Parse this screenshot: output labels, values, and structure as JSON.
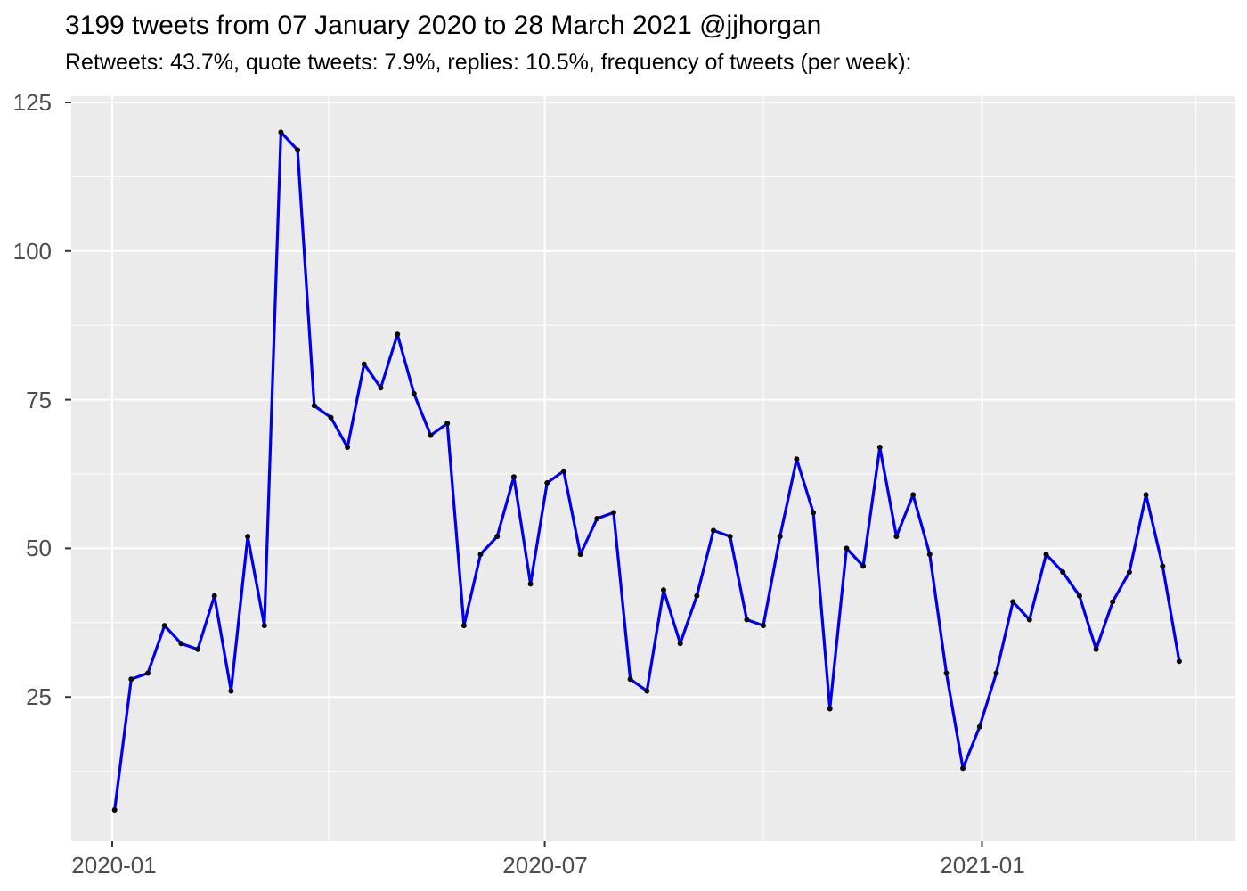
{
  "header": {
    "title": "3199 tweets from 07 January 2020 to 28 March 2021 @jjhorgan",
    "subtitle": "Retweets: 43.7%, quote tweets: 7.9%, replies: 10.5%, frequency of tweets (per week):"
  },
  "chart_data": {
    "type": "line",
    "title": "3199 tweets from 07 January 2020 to 28 March 2021 @jjhorgan",
    "subtitle": "Retweets: 43.7%, quote tweets: 7.9%, replies: 10.5%, frequency of tweets (per week):",
    "series_name": "tweets-per-week",
    "xlabel": "",
    "ylabel": "",
    "grid": "on",
    "legend": "none",
    "x": [
      "2020-01-02",
      "2020-01-09",
      "2020-01-16",
      "2020-01-23",
      "2020-01-30",
      "2020-02-06",
      "2020-02-13",
      "2020-02-20",
      "2020-02-27",
      "2020-03-05",
      "2020-03-12",
      "2020-03-19",
      "2020-03-26",
      "2020-04-02",
      "2020-04-09",
      "2020-04-16",
      "2020-04-23",
      "2020-04-30",
      "2020-05-07",
      "2020-05-14",
      "2020-05-21",
      "2020-05-28",
      "2020-06-04",
      "2020-06-11",
      "2020-06-18",
      "2020-06-25",
      "2020-07-02",
      "2020-07-09",
      "2020-07-16",
      "2020-07-23",
      "2020-07-30",
      "2020-08-06",
      "2020-08-13",
      "2020-08-20",
      "2020-08-27",
      "2020-09-03",
      "2020-09-10",
      "2020-09-17",
      "2020-09-24",
      "2020-10-01",
      "2020-10-08",
      "2020-10-15",
      "2020-10-22",
      "2020-10-29",
      "2020-11-05",
      "2020-11-12",
      "2020-11-19",
      "2020-11-26",
      "2020-12-03",
      "2020-12-10",
      "2020-12-17",
      "2020-12-24",
      "2020-12-31",
      "2021-01-07",
      "2021-01-14",
      "2021-01-21",
      "2021-01-28",
      "2021-02-04",
      "2021-02-11",
      "2021-02-18",
      "2021-02-25",
      "2021-03-04",
      "2021-03-11",
      "2021-03-18",
      "2021-03-25"
    ],
    "values": [
      6,
      28,
      29,
      37,
      34,
      33,
      42,
      26,
      52,
      37,
      120,
      117,
      74,
      72,
      67,
      81,
      77,
      86,
      76,
      69,
      71,
      37,
      49,
      52,
      62,
      44,
      61,
      63,
      49,
      55,
      56,
      28,
      26,
      43,
      34,
      42,
      53,
      52,
      38,
      37,
      52,
      65,
      56,
      23,
      50,
      47,
      67,
      52,
      59,
      49,
      29,
      13,
      20,
      29,
      41,
      38,
      49,
      46,
      42,
      33,
      41,
      46,
      59,
      47,
      31
    ],
    "values_total": 3199,
    "y_ticks": [
      25,
      50,
      75,
      100,
      125
    ],
    "y_minor_ticks": [
      12.5,
      37.5,
      62.5,
      87.5,
      112.5
    ],
    "ylim": [
      0.6,
      126.1
    ],
    "x_tick_labels": [
      "2020-01",
      "2020-07",
      "2021-01"
    ],
    "x_tick_dates": [
      "2020-01-01",
      "2020-07-01",
      "2021-01-01"
    ],
    "x_minor_tick_dates": [
      "2020-04-01",
      "2020-10-01",
      "2021-04-01"
    ],
    "colors": {
      "line": "#0000EE",
      "point": "#0a0a0a",
      "panel_bg": "#EBEBEB",
      "gridline": "#FFFFFF",
      "axis_tick": "#333333",
      "tick_label": "#4D4D4D",
      "title": "#000000"
    }
  }
}
